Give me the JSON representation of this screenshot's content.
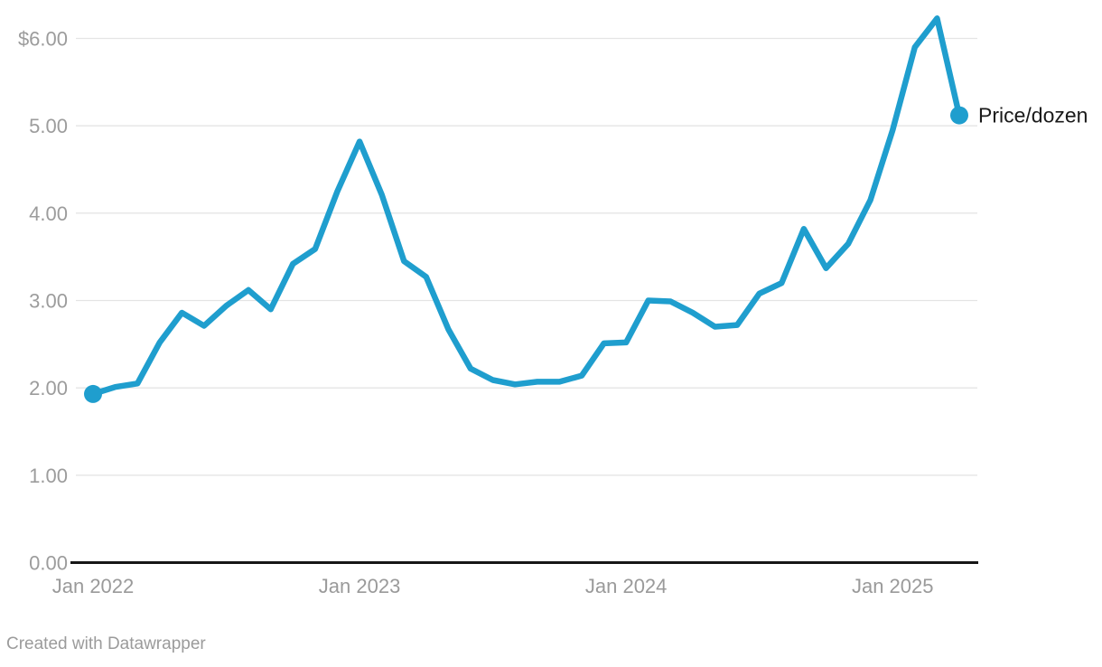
{
  "chart_data": {
    "type": "line",
    "title": "",
    "xlabel": "",
    "ylabel": "",
    "x": [
      "Jan 2022",
      "Feb 2022",
      "Mar 2022",
      "Apr 2022",
      "May 2022",
      "Jun 2022",
      "Jul 2022",
      "Aug 2022",
      "Sep 2022",
      "Oct 2022",
      "Nov 2022",
      "Dec 2022",
      "Jan 2023",
      "Feb 2023",
      "Mar 2023",
      "Apr 2023",
      "May 2023",
      "Jun 2023",
      "Jul 2023",
      "Aug 2023",
      "Sep 2023",
      "Oct 2023",
      "Nov 2023",
      "Dec 2023",
      "Jan 2024",
      "Feb 2024",
      "Mar 2024",
      "Apr 2024",
      "May 2024",
      "Jun 2024",
      "Jul 2024",
      "Aug 2024",
      "Sep 2024",
      "Oct 2024",
      "Nov 2024",
      "Dec 2024",
      "Jan 2025",
      "Feb 2025",
      "Mar 2025",
      "Apr 2025"
    ],
    "series": [
      {
        "name": "Price/dozen",
        "values": [
          1.93,
          2.01,
          2.05,
          2.52,
          2.86,
          2.71,
          2.94,
          3.12,
          2.9,
          3.42,
          3.59,
          4.25,
          4.82,
          4.21,
          3.45,
          3.27,
          2.67,
          2.22,
          2.09,
          2.04,
          2.07,
          2.07,
          2.14,
          2.51,
          2.52,
          3.0,
          2.99,
          2.86,
          2.7,
          2.72,
          3.08,
          3.2,
          3.82,
          3.37,
          3.65,
          4.15,
          4.95,
          5.9,
          6.23,
          5.12
        ]
      }
    ],
    "ylim": [
      0,
      6.5
    ],
    "y_ticks": [
      {
        "value": 6,
        "label": "$6.00"
      },
      {
        "value": 5,
        "label": "5.00"
      },
      {
        "value": 4,
        "label": "4.00"
      },
      {
        "value": 3,
        "label": "3.00"
      },
      {
        "value": 2,
        "label": "2.00"
      },
      {
        "value": 1,
        "label": "1.00"
      },
      {
        "value": 0,
        "label": "0.00"
      }
    ],
    "x_ticks": [
      {
        "index": 0,
        "label": "Jan 2022"
      },
      {
        "index": 12,
        "label": "Jan 2023"
      },
      {
        "index": 24,
        "label": "Jan 2024"
      },
      {
        "index": 36,
        "label": "Jan 2025"
      }
    ],
    "legend": {
      "label": "Price/dozen",
      "position": "end-of-line"
    },
    "grid": "horizontal",
    "markers": {
      "start_dot": true,
      "end_dot": true
    },
    "colors": {
      "line": "#1f9ece",
      "grid": "#e4e4e4",
      "axis": "#161616",
      "tick_text": "#9c9c9c",
      "legend_text": "#1a1a1a",
      "background": "#ffffff"
    }
  },
  "footer": {
    "credit": "Created with Datawrapper"
  }
}
